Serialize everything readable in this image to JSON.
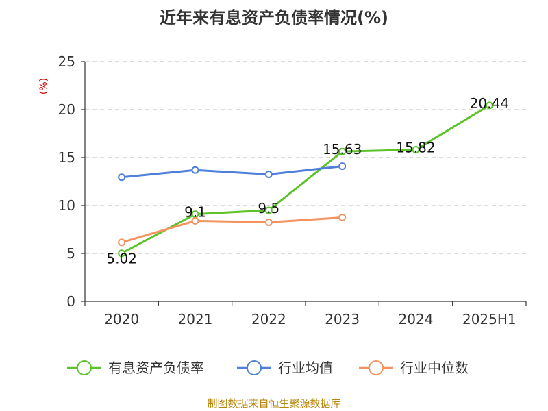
{
  "chart_data": {
    "type": "line",
    "title": "近年来有息资产负债率情况(%)",
    "ylabel": "(%)",
    "categories": [
      "2020",
      "2021",
      "2022",
      "2023",
      "2024",
      "2025H1"
    ],
    "ylim": [
      0,
      25
    ],
    "yticks": [
      "0",
      "5",
      "10",
      "15",
      "20",
      "25"
    ],
    "grid": true,
    "legend_position": "bottom",
    "series": [
      {
        "name": "有息资产负债率",
        "color": "#5cc22a",
        "values": [
          5.02,
          9.1,
          9.5,
          15.63,
          15.82,
          20.44
        ],
        "labels": [
          "5.02",
          "9.1",
          "9.5",
          "15.63",
          "15.82",
          "20.44"
        ]
      },
      {
        "name": "行业均值",
        "color": "#4e7fd9",
        "values": [
          12.95,
          13.7,
          13.25,
          14.1,
          null,
          null
        ]
      },
      {
        "name": "行业中位数",
        "color": "#f4935f",
        "values": [
          6.15,
          8.4,
          8.25,
          8.75,
          null,
          null
        ]
      }
    ]
  },
  "source": "制图数据来自恒生聚源数据库"
}
